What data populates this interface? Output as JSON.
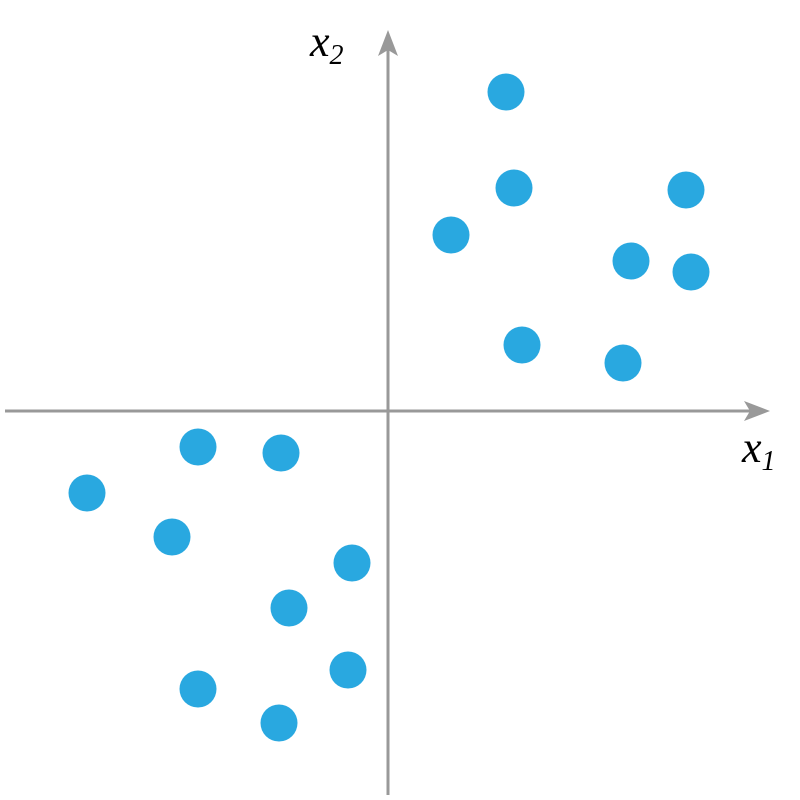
{
  "chart_data": {
    "type": "scatter",
    "xlabel": {
      "text": "x",
      "subscript": "1"
    },
    "ylabel": {
      "text": "x",
      "subscript": "2"
    },
    "xlim": [
      -3.83,
      3.82
    ],
    "ylim": [
      -3.84,
      3.81
    ],
    "color": "#29a8e0",
    "x": [
      1.18,
      1.26,
      2.98,
      0.63,
      2.43,
      3.03,
      1.34,
      2.35,
      -1.9,
      -1.07,
      -3.01,
      -2.16,
      -0.36,
      -0.99,
      -0.4,
      -1.9,
      -1.09
    ],
    "values": [
      3.19,
      2.23,
      2.21,
      1.76,
      1.5,
      1.39,
      0.66,
      0.48,
      -0.36,
      -0.42,
      -0.82,
      -1.26,
      -1.52,
      -1.97,
      -2.59,
      -2.78,
      -3.12
    ]
  }
}
